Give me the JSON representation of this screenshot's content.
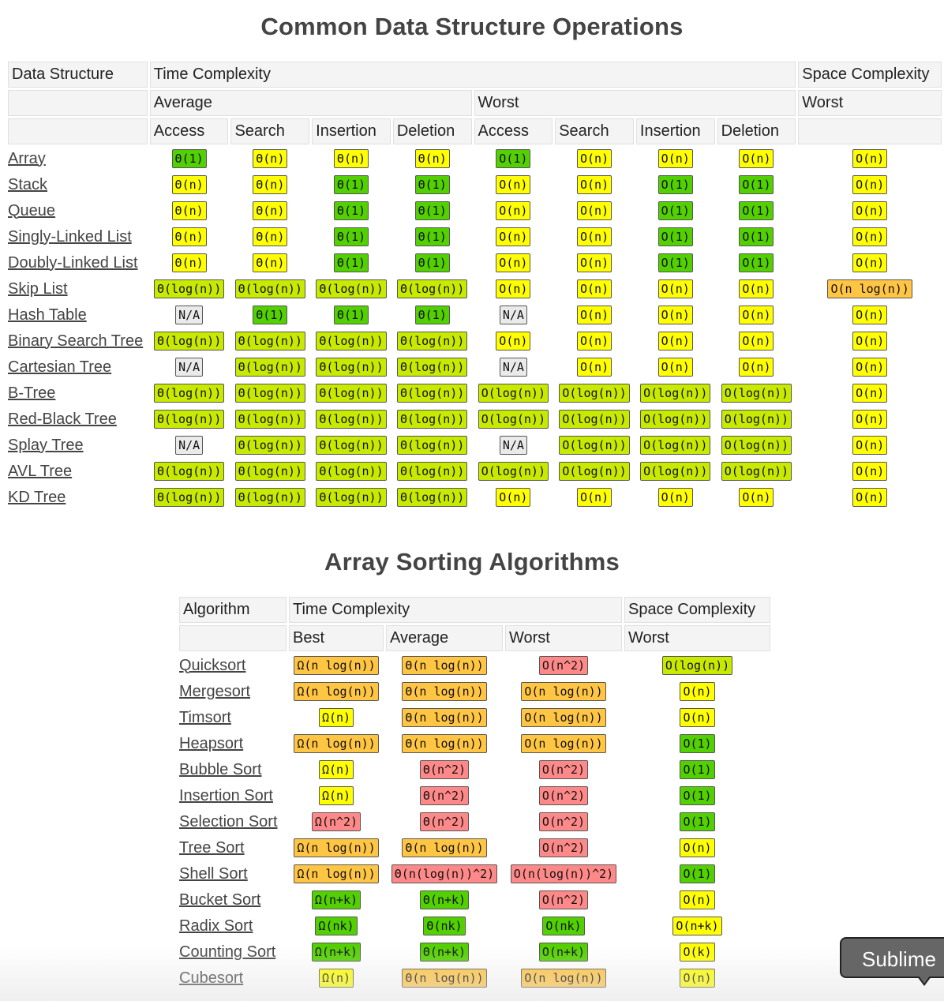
{
  "colors": {
    "green": "#53d000",
    "yellow-green": "#c8ea00",
    "yellow": "#ffff00",
    "orange": "#ffc543",
    "red": "#ff8989",
    "gray": "#eaeaea"
  },
  "ds": {
    "title": "Common Data Structure Operations",
    "headers": {
      "data_structure": "Data Structure",
      "time_complexity": "Time Complexity",
      "space_complexity": "Space Complexity",
      "average": "Average",
      "worst": "Worst",
      "space_worst": "Worst",
      "cols": [
        "Access",
        "Search",
        "Insertion",
        "Deletion",
        "Access",
        "Search",
        "Insertion",
        "Deletion"
      ]
    },
    "rows": [
      {
        "name": "Array",
        "cells": [
          [
            "Θ(1)",
            "green"
          ],
          [
            "Θ(n)",
            "yellow"
          ],
          [
            "Θ(n)",
            "yellow"
          ],
          [
            "Θ(n)",
            "yellow"
          ],
          [
            "O(1)",
            "green"
          ],
          [
            "O(n)",
            "yellow"
          ],
          [
            "O(n)",
            "yellow"
          ],
          [
            "O(n)",
            "yellow"
          ],
          [
            "O(n)",
            "yellow"
          ]
        ]
      },
      {
        "name": "Stack",
        "cells": [
          [
            "Θ(n)",
            "yellow"
          ],
          [
            "Θ(n)",
            "yellow"
          ],
          [
            "Θ(1)",
            "green"
          ],
          [
            "Θ(1)",
            "green"
          ],
          [
            "O(n)",
            "yellow"
          ],
          [
            "O(n)",
            "yellow"
          ],
          [
            "O(1)",
            "green"
          ],
          [
            "O(1)",
            "green"
          ],
          [
            "O(n)",
            "yellow"
          ]
        ]
      },
      {
        "name": "Queue",
        "cells": [
          [
            "Θ(n)",
            "yellow"
          ],
          [
            "Θ(n)",
            "yellow"
          ],
          [
            "Θ(1)",
            "green"
          ],
          [
            "Θ(1)",
            "green"
          ],
          [
            "O(n)",
            "yellow"
          ],
          [
            "O(n)",
            "yellow"
          ],
          [
            "O(1)",
            "green"
          ],
          [
            "O(1)",
            "green"
          ],
          [
            "O(n)",
            "yellow"
          ]
        ]
      },
      {
        "name": "Singly-Linked List",
        "cells": [
          [
            "Θ(n)",
            "yellow"
          ],
          [
            "Θ(n)",
            "yellow"
          ],
          [
            "Θ(1)",
            "green"
          ],
          [
            "Θ(1)",
            "green"
          ],
          [
            "O(n)",
            "yellow"
          ],
          [
            "O(n)",
            "yellow"
          ],
          [
            "O(1)",
            "green"
          ],
          [
            "O(1)",
            "green"
          ],
          [
            "O(n)",
            "yellow"
          ]
        ]
      },
      {
        "name": "Doubly-Linked List",
        "cells": [
          [
            "Θ(n)",
            "yellow"
          ],
          [
            "Θ(n)",
            "yellow"
          ],
          [
            "Θ(1)",
            "green"
          ],
          [
            "Θ(1)",
            "green"
          ],
          [
            "O(n)",
            "yellow"
          ],
          [
            "O(n)",
            "yellow"
          ],
          [
            "O(1)",
            "green"
          ],
          [
            "O(1)",
            "green"
          ],
          [
            "O(n)",
            "yellow"
          ]
        ]
      },
      {
        "name": "Skip List",
        "cells": [
          [
            "Θ(log(n))",
            "yellow-green"
          ],
          [
            "Θ(log(n))",
            "yellow-green"
          ],
          [
            "Θ(log(n))",
            "yellow-green"
          ],
          [
            "Θ(log(n))",
            "yellow-green"
          ],
          [
            "O(n)",
            "yellow"
          ],
          [
            "O(n)",
            "yellow"
          ],
          [
            "O(n)",
            "yellow"
          ],
          [
            "O(n)",
            "yellow"
          ],
          [
            "O(n log(n))",
            "orange"
          ]
        ]
      },
      {
        "name": "Hash Table",
        "cells": [
          [
            "N/A",
            "gray"
          ],
          [
            "Θ(1)",
            "green"
          ],
          [
            "Θ(1)",
            "green"
          ],
          [
            "Θ(1)",
            "green"
          ],
          [
            "N/A",
            "gray"
          ],
          [
            "O(n)",
            "yellow"
          ],
          [
            "O(n)",
            "yellow"
          ],
          [
            "O(n)",
            "yellow"
          ],
          [
            "O(n)",
            "yellow"
          ]
        ]
      },
      {
        "name": "Binary Search Tree",
        "cells": [
          [
            "Θ(log(n))",
            "yellow-green"
          ],
          [
            "Θ(log(n))",
            "yellow-green"
          ],
          [
            "Θ(log(n))",
            "yellow-green"
          ],
          [
            "Θ(log(n))",
            "yellow-green"
          ],
          [
            "O(n)",
            "yellow"
          ],
          [
            "O(n)",
            "yellow"
          ],
          [
            "O(n)",
            "yellow"
          ],
          [
            "O(n)",
            "yellow"
          ],
          [
            "O(n)",
            "yellow"
          ]
        ]
      },
      {
        "name": "Cartesian Tree",
        "cells": [
          [
            "N/A",
            "gray"
          ],
          [
            "Θ(log(n))",
            "yellow-green"
          ],
          [
            "Θ(log(n))",
            "yellow-green"
          ],
          [
            "Θ(log(n))",
            "yellow-green"
          ],
          [
            "N/A",
            "gray"
          ],
          [
            "O(n)",
            "yellow"
          ],
          [
            "O(n)",
            "yellow"
          ],
          [
            "O(n)",
            "yellow"
          ],
          [
            "O(n)",
            "yellow"
          ]
        ]
      },
      {
        "name": "B-Tree",
        "cells": [
          [
            "Θ(log(n))",
            "yellow-green"
          ],
          [
            "Θ(log(n))",
            "yellow-green"
          ],
          [
            "Θ(log(n))",
            "yellow-green"
          ],
          [
            "Θ(log(n))",
            "yellow-green"
          ],
          [
            "O(log(n))",
            "yellow-green"
          ],
          [
            "O(log(n))",
            "yellow-green"
          ],
          [
            "O(log(n))",
            "yellow-green"
          ],
          [
            "O(log(n))",
            "yellow-green"
          ],
          [
            "O(n)",
            "yellow"
          ]
        ]
      },
      {
        "name": "Red-Black Tree",
        "cells": [
          [
            "Θ(log(n))",
            "yellow-green"
          ],
          [
            "Θ(log(n))",
            "yellow-green"
          ],
          [
            "Θ(log(n))",
            "yellow-green"
          ],
          [
            "Θ(log(n))",
            "yellow-green"
          ],
          [
            "O(log(n))",
            "yellow-green"
          ],
          [
            "O(log(n))",
            "yellow-green"
          ],
          [
            "O(log(n))",
            "yellow-green"
          ],
          [
            "O(log(n))",
            "yellow-green"
          ],
          [
            "O(n)",
            "yellow"
          ]
        ]
      },
      {
        "name": "Splay Tree",
        "cells": [
          [
            "N/A",
            "gray"
          ],
          [
            "Θ(log(n))",
            "yellow-green"
          ],
          [
            "Θ(log(n))",
            "yellow-green"
          ],
          [
            "Θ(log(n))",
            "yellow-green"
          ],
          [
            "N/A",
            "gray"
          ],
          [
            "O(log(n))",
            "yellow-green"
          ],
          [
            "O(log(n))",
            "yellow-green"
          ],
          [
            "O(log(n))",
            "yellow-green"
          ],
          [
            "O(n)",
            "yellow"
          ]
        ]
      },
      {
        "name": "AVL Tree",
        "cells": [
          [
            "Θ(log(n))",
            "yellow-green"
          ],
          [
            "Θ(log(n))",
            "yellow-green"
          ],
          [
            "Θ(log(n))",
            "yellow-green"
          ],
          [
            "Θ(log(n))",
            "yellow-green"
          ],
          [
            "O(log(n))",
            "yellow-green"
          ],
          [
            "O(log(n))",
            "yellow-green"
          ],
          [
            "O(log(n))",
            "yellow-green"
          ],
          [
            "O(log(n))",
            "yellow-green"
          ],
          [
            "O(n)",
            "yellow"
          ]
        ]
      },
      {
        "name": "KD Tree",
        "cells": [
          [
            "Θ(log(n))",
            "yellow-green"
          ],
          [
            "Θ(log(n))",
            "yellow-green"
          ],
          [
            "Θ(log(n))",
            "yellow-green"
          ],
          [
            "Θ(log(n))",
            "yellow-green"
          ],
          [
            "O(n)",
            "yellow"
          ],
          [
            "O(n)",
            "yellow"
          ],
          [
            "O(n)",
            "yellow"
          ],
          [
            "O(n)",
            "yellow"
          ],
          [
            "O(n)",
            "yellow"
          ]
        ]
      }
    ]
  },
  "sort": {
    "title": "Array Sorting Algorithms",
    "headers": {
      "algorithm": "Algorithm",
      "time_complexity": "Time Complexity",
      "space_complexity": "Space Complexity",
      "best": "Best",
      "average": "Average",
      "worst": "Worst",
      "space_worst": "Worst"
    },
    "rows": [
      {
        "name": "Quicksort",
        "cells": [
          [
            "Ω(n log(n))",
            "orange"
          ],
          [
            "Θ(n log(n))",
            "orange"
          ],
          [
            "O(n^2)",
            "red"
          ],
          [
            "O(log(n))",
            "yellow-green"
          ]
        ]
      },
      {
        "name": "Mergesort",
        "cells": [
          [
            "Ω(n log(n))",
            "orange"
          ],
          [
            "Θ(n log(n))",
            "orange"
          ],
          [
            "O(n log(n))",
            "orange"
          ],
          [
            "O(n)",
            "yellow"
          ]
        ]
      },
      {
        "name": "Timsort",
        "cells": [
          [
            "Ω(n)",
            "yellow"
          ],
          [
            "Θ(n log(n))",
            "orange"
          ],
          [
            "O(n log(n))",
            "orange"
          ],
          [
            "O(n)",
            "yellow"
          ]
        ]
      },
      {
        "name": "Heapsort",
        "cells": [
          [
            "Ω(n log(n))",
            "orange"
          ],
          [
            "Θ(n log(n))",
            "orange"
          ],
          [
            "O(n log(n))",
            "orange"
          ],
          [
            "O(1)",
            "green"
          ]
        ]
      },
      {
        "name": "Bubble Sort",
        "cells": [
          [
            "Ω(n)",
            "yellow"
          ],
          [
            "Θ(n^2)",
            "red"
          ],
          [
            "O(n^2)",
            "red"
          ],
          [
            "O(1)",
            "green"
          ]
        ]
      },
      {
        "name": "Insertion Sort",
        "cells": [
          [
            "Ω(n)",
            "yellow"
          ],
          [
            "Θ(n^2)",
            "red"
          ],
          [
            "O(n^2)",
            "red"
          ],
          [
            "O(1)",
            "green"
          ]
        ]
      },
      {
        "name": "Selection Sort",
        "cells": [
          [
            "Ω(n^2)",
            "red"
          ],
          [
            "Θ(n^2)",
            "red"
          ],
          [
            "O(n^2)",
            "red"
          ],
          [
            "O(1)",
            "green"
          ]
        ]
      },
      {
        "name": "Tree Sort",
        "cells": [
          [
            "Ω(n log(n))",
            "orange"
          ],
          [
            "Θ(n log(n))",
            "orange"
          ],
          [
            "O(n^2)",
            "red"
          ],
          [
            "O(n)",
            "yellow"
          ]
        ]
      },
      {
        "name": "Shell Sort",
        "cells": [
          [
            "Ω(n log(n))",
            "orange"
          ],
          [
            "Θ(n(log(n))^2)",
            "red"
          ],
          [
            "O(n(log(n))^2)",
            "red"
          ],
          [
            "O(1)",
            "green"
          ]
        ]
      },
      {
        "name": "Bucket Sort",
        "cells": [
          [
            "Ω(n+k)",
            "green"
          ],
          [
            "Θ(n+k)",
            "green"
          ],
          [
            "O(n^2)",
            "red"
          ],
          [
            "O(n)",
            "yellow"
          ]
        ]
      },
      {
        "name": "Radix Sort",
        "cells": [
          [
            "Ω(nk)",
            "green"
          ],
          [
            "Θ(nk)",
            "green"
          ],
          [
            "O(nk)",
            "green"
          ],
          [
            "O(n+k)",
            "yellow"
          ]
        ]
      },
      {
        "name": "Counting Sort",
        "cells": [
          [
            "Ω(n+k)",
            "green"
          ],
          [
            "Θ(n+k)",
            "green"
          ],
          [
            "O(n+k)",
            "green"
          ],
          [
            "O(k)",
            "yellow"
          ]
        ]
      },
      {
        "name": "Cubesort",
        "cells": [
          [
            "Ω(n)",
            "yellow"
          ],
          [
            "Θ(n log(n))",
            "orange"
          ],
          [
            "O(n log(n))",
            "orange"
          ],
          [
            "O(n)",
            "yellow"
          ]
        ]
      }
    ]
  },
  "tooltip": {
    "text": "Sublime"
  }
}
